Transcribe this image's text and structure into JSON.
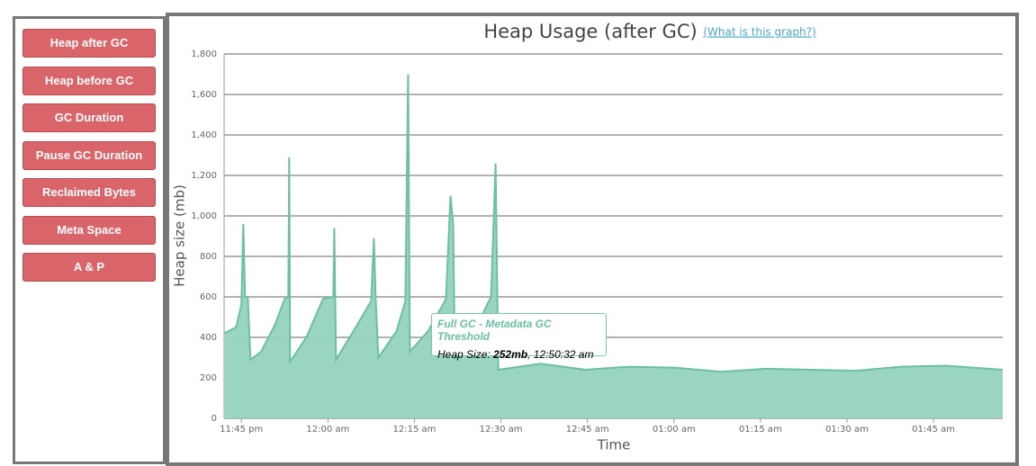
{
  "sidebar": {
    "buttons": [
      "Heap after GC",
      "Heap before GC",
      "GC Duration",
      "Pause GC Duration",
      "Reclaimed Bytes",
      "Meta Space",
      "A & P"
    ]
  },
  "link": "(What is this graph?)",
  "tooltip": {
    "title": "Full GC - Metadata GC Threshold",
    "label": "Heap Size: ",
    "value": "252mb",
    "time": ", 12:50:32 am"
  },
  "chart_data": {
    "type": "area",
    "title": "Heap Usage (after GC)",
    "x_label": "Time",
    "y_label": "Heap size (mb)",
    "color": "#93d3bf",
    "line_color": "#6cbfa3",
    "grid": true,
    "x": [
      "23:42:00",
      "23:44:04",
      "23:45:00",
      "23:45:19",
      "23:45:38",
      "23:46:06",
      "23:46:34",
      "23:48:26",
      "23:50:47",
      "23:52:30",
      "23:53:08",
      "23:53:17",
      "23:53:26",
      "23:56:15",
      "23:59:09",
      "00:00:56",
      "00:01:06",
      "00:01:24",
      "00:04:50",
      "00:07:30",
      "00:07:58",
      "00:08:17",
      "00:08:45",
      "00:11:53",
      "00:13:26",
      "00:13:54",
      "00:14:13",
      "00:17:20",
      "00:20:28",
      "00:21:15",
      "00:21:43",
      "00:22:01",
      "00:25:09",
      "00:28:17",
      "00:29:04",
      "00:29:32",
      "00:36:52",
      "00:44:41",
      "00:50:32",
      "00:52:30",
      "01:00:19",
      "01:08:08",
      "01:15:56",
      "01:23:45",
      "01:31:34",
      "01:39:23",
      "01:47:11",
      "01:57:00"
    ],
    "values": [
      420,
      450,
      560,
      960,
      600,
      600,
      290,
      330,
      460,
      590,
      600,
      1290,
      280,
      400,
      590,
      600,
      940,
      290,
      450,
      580,
      890,
      590,
      300,
      430,
      580,
      1700,
      330,
      430,
      590,
      1100,
      960,
      300,
      420,
      600,
      1260,
      240,
      270,
      240,
      252,
      255,
      250,
      230,
      245,
      240,
      235,
      255,
      260,
      240
    ],
    "xlim": [
      "23:42:00",
      "01:57:00"
    ],
    "xticks": [
      {
        "value": "23:45:00",
        "label": "11:45 pm"
      },
      {
        "value": "00:00:00",
        "label": "12:00 am"
      },
      {
        "value": "00:15:00",
        "label": "12:15 am"
      },
      {
        "value": "00:30:00",
        "label": "12:30 am"
      },
      {
        "value": "00:45:00",
        "label": "12:45 am"
      },
      {
        "value": "01:00:00",
        "label": "01:00 am"
      },
      {
        "value": "01:15:00",
        "label": "01:15 am"
      },
      {
        "value": "01:30:00",
        "label": "01:30 am"
      },
      {
        "value": "01:45:00",
        "label": "01:45 am"
      }
    ],
    "ylim": [
      0,
      1800
    ],
    "yticks": [
      0,
      200,
      400,
      600,
      800,
      {
        "value": 1000,
        "label": "1,000"
      },
      {
        "value": 1200,
        "label": "1,200"
      },
      {
        "value": 1400,
        "label": "1,400"
      },
      {
        "value": 1600,
        "label": "1,600"
      },
      {
        "value": 1800,
        "label": "1,800"
      }
    ]
  }
}
